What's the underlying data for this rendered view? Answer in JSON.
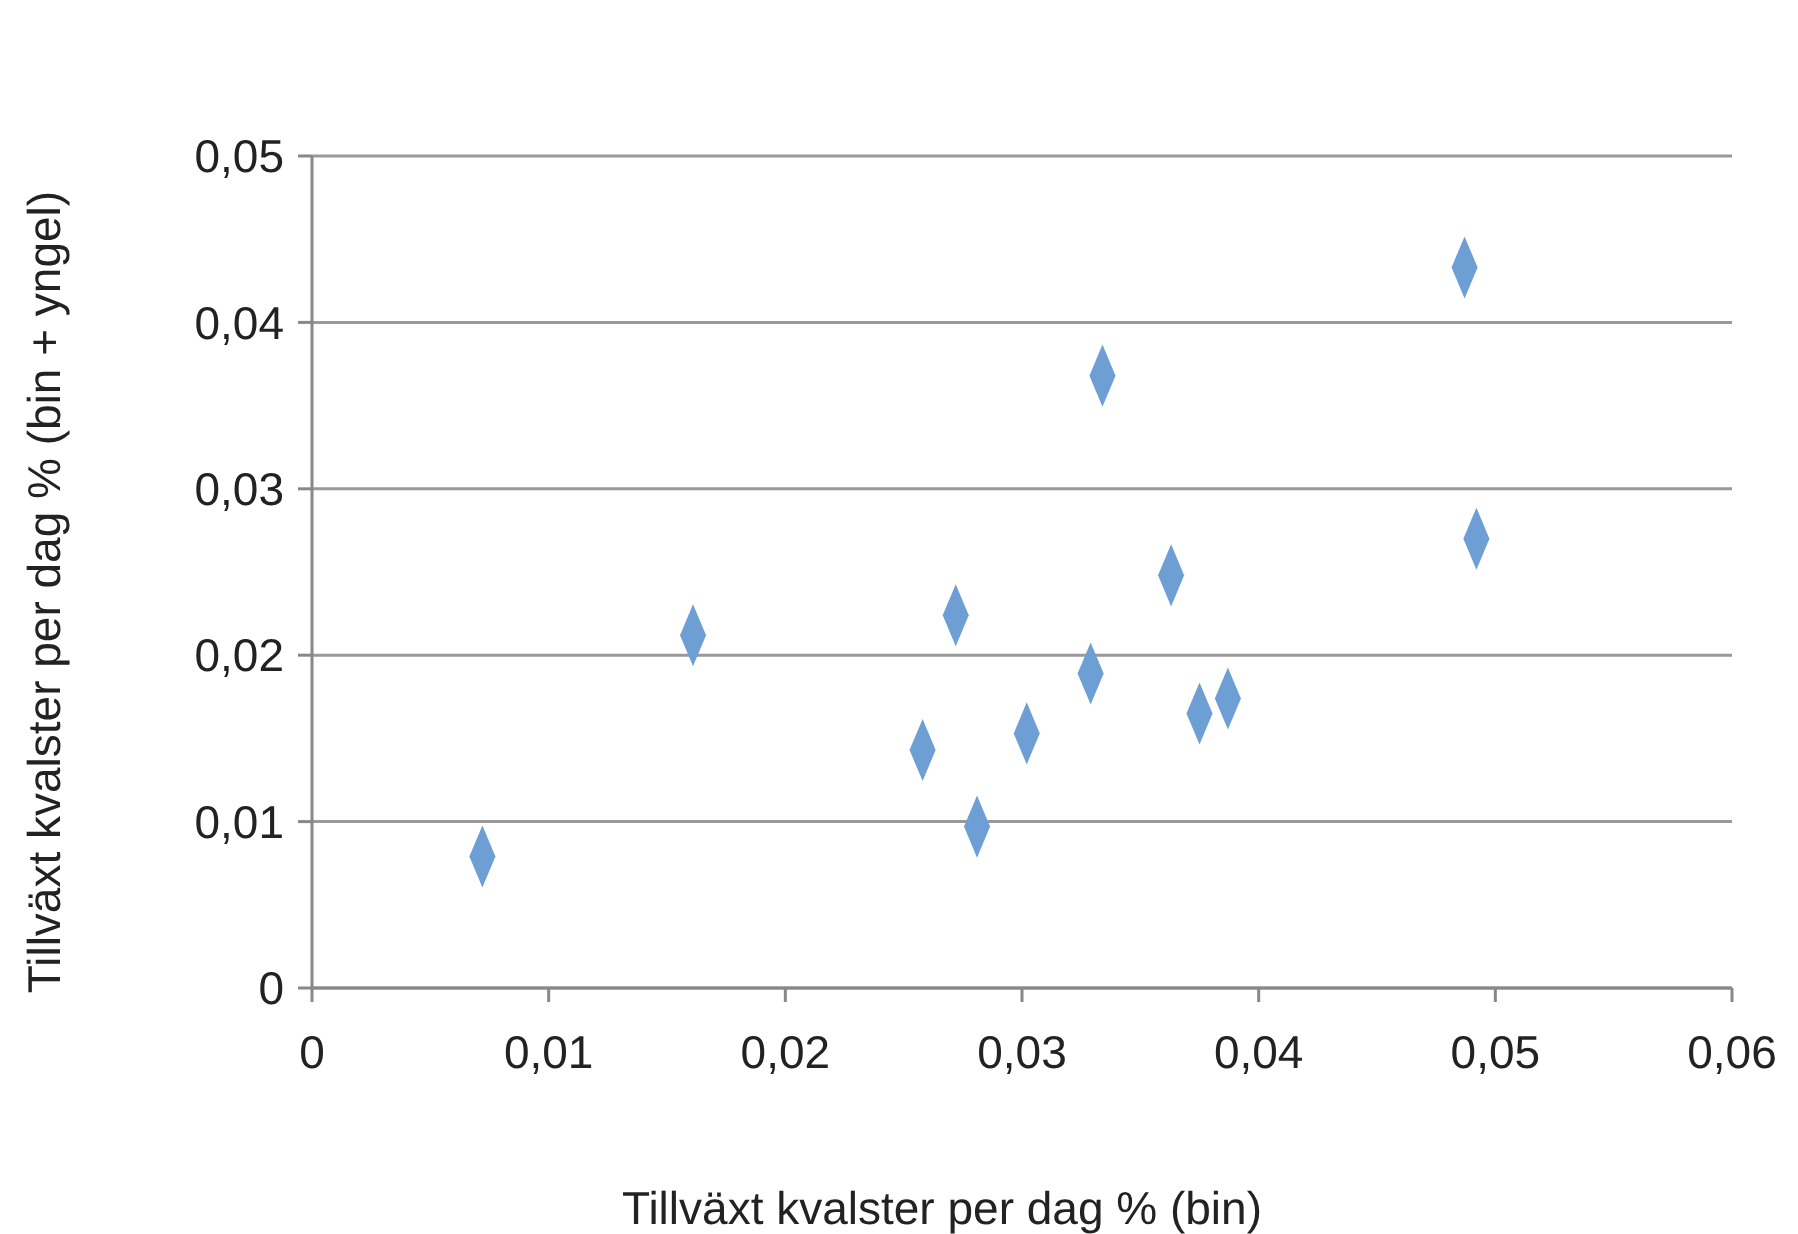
{
  "chart_data": {
    "type": "scatter",
    "xlabel": "Tillväxt kvalster  per dag % (bin)",
    "ylabel": "Tillväxt kvalster  per dag % (bin + yngel)",
    "x": [
      0.0072,
      0.0161,
      0.0258,
      0.0272,
      0.0281,
      0.0302,
      0.0329,
      0.0334,
      0.0363,
      0.0375,
      0.0387,
      0.0487,
      0.0492
    ],
    "values": [
      0.0079,
      0.0212,
      0.0143,
      0.0224,
      0.0097,
      0.0153,
      0.0189,
      0.0368,
      0.0248,
      0.0165,
      0.0174,
      0.0433,
      0.027
    ],
    "color": "#6d9fd5",
    "marker": "diamond",
    "grid": "y",
    "xlim": [
      0,
      0.06
    ],
    "xticks": [
      0,
      {
        "value": 0.01,
        "label": "0,01"
      },
      {
        "value": 0.02,
        "label": "0,02"
      },
      {
        "value": 0.03,
        "label": "0,03"
      },
      {
        "value": 0.04,
        "label": "0,04"
      },
      {
        "value": 0.05,
        "label": "0,05"
      },
      {
        "value": 0.06,
        "label": "0,06"
      }
    ],
    "ylim": [
      0,
      0.05
    ],
    "yticks": [
      0,
      {
        "value": 0.01,
        "label": "0,01"
      },
      {
        "value": 0.02,
        "label": "0,02"
      },
      {
        "value": 0.03,
        "label": "0,03"
      },
      {
        "value": 0.04,
        "label": "0,04"
      },
      {
        "value": 0.05,
        "label": "0,05"
      }
    ]
  }
}
